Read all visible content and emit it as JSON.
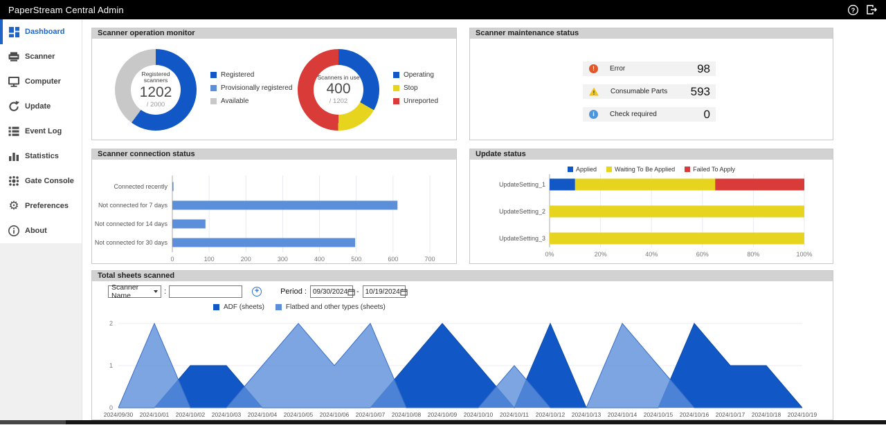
{
  "app": {
    "title": "PaperStream Central Admin"
  },
  "topbar": {
    "icons": [
      "help-icon",
      "logout-icon"
    ],
    "help_glyph": "?"
  },
  "sidebar": {
    "items": [
      {
        "label": "Dashboard",
        "icon": "dashboard-icon",
        "active": true
      },
      {
        "label": "Scanner",
        "icon": "scanner-icon",
        "active": false
      },
      {
        "label": "Computer",
        "icon": "computer-icon",
        "active": false
      },
      {
        "label": "Update",
        "icon": "update-icon",
        "active": false
      },
      {
        "label": "Event Log",
        "icon": "event-log-icon",
        "active": false
      },
      {
        "label": "Statistics",
        "icon": "statistics-icon",
        "active": false
      },
      {
        "label": "Gate Console",
        "icon": "gate-console-icon",
        "active": false
      },
      {
        "label": "Preferences",
        "icon": "preferences-icon",
        "active": false
      },
      {
        "label": "About",
        "icon": "about-icon",
        "active": false
      }
    ]
  },
  "panels": {
    "operation": {
      "title": "Scanner operation monitor",
      "donuts": [
        {
          "center_label": "Registered scanners",
          "value": "1202",
          "total": "/ 2000",
          "slices": [
            {
              "label": "Registered",
              "value": 1202,
              "color": "#1157c5"
            },
            {
              "label": "Provisionally registered",
              "value": 0,
              "color": "#5b8fd9"
            },
            {
              "label": "Available",
              "value": 798,
              "color": "#c8c8c8"
            }
          ]
        },
        {
          "center_label": "Scanners in use",
          "value": "400",
          "total": "/ 1202",
          "slices": [
            {
              "label": "Operating",
              "value": 400,
              "color": "#1157c5"
            },
            {
              "label": "Stop",
              "value": 202,
              "color": "#e7d41e"
            },
            {
              "label": "Unreported",
              "value": 600,
              "color": "#d93b38"
            }
          ]
        }
      ]
    },
    "maintenance": {
      "title": "Scanner maintenance status",
      "rows": [
        {
          "icon": "error-icon",
          "glyph": "!",
          "label": "Error",
          "value": "98"
        },
        {
          "icon": "warning-icon",
          "glyph": "!",
          "label": "Consumable Parts",
          "value": "593"
        },
        {
          "icon": "info-icon",
          "glyph": "i",
          "label": "Check required",
          "value": "0"
        }
      ]
    },
    "connection": {
      "title": "Scanner connection status"
    },
    "update": {
      "title": "Update status"
    },
    "sheets": {
      "title": "Total sheets scanned",
      "filter_select": "Scanner Name",
      "colon": ":",
      "filter_value": "",
      "plus_icon": "+",
      "period_label": "Period :",
      "period_from": "09/30/2024",
      "separator": "-",
      "period_to": "10/19/2024"
    }
  },
  "chart_data": [
    {
      "type": "bar",
      "orientation": "horizontal",
      "categories": [
        "Connected recently",
        "Not connected for 7 days",
        "Not connected for 14 days",
        "Not connected for 30 days"
      ],
      "values": [
        3,
        612,
        90,
        497
      ],
      "xlim": [
        0,
        700
      ],
      "xticks": [
        0,
        100,
        200,
        300,
        400,
        500,
        600,
        700
      ],
      "bar_color": "#5b8fd9",
      "grid": true,
      "title": "Scanner connection status"
    },
    {
      "type": "bar",
      "orientation": "horizontal-stacked",
      "categories": [
        "UpdateSetting_1",
        "UpdateSetting_2",
        "UpdateSetting_3"
      ],
      "series": [
        {
          "name": "Applied",
          "color": "#1157c5",
          "values": [
            10,
            0,
            0
          ]
        },
        {
          "name": "Waiting To Be Applied",
          "color": "#e7d41e",
          "values": [
            55,
            100,
            100
          ]
        },
        {
          "name": "Failed To Apply",
          "color": "#d93b38",
          "values": [
            35,
            0,
            0
          ]
        }
      ],
      "xlim": [
        0,
        100
      ],
      "xticks": [
        "0%",
        "20%",
        "40%",
        "60%",
        "80%",
        "100%"
      ],
      "legend_position": "top",
      "grid": true,
      "title": "Update status"
    },
    {
      "type": "area",
      "x": [
        "2024/09/30",
        "2024/10/01",
        "2024/10/02",
        "2024/10/03",
        "2024/10/04",
        "2024/10/05",
        "2024/10/06",
        "2024/10/07",
        "2024/10/08",
        "2024/10/09",
        "2024/10/10",
        "2024/10/11",
        "2024/10/12",
        "2024/10/13",
        "2024/10/14",
        "2024/10/15",
        "2024/10/16",
        "2024/10/17",
        "2024/10/18",
        "2024/10/19"
      ],
      "series": [
        {
          "name": "ADF (sheets)",
          "color": "#1157c5",
          "values": [
            0,
            0,
            1,
            1,
            0,
            0,
            0,
            0,
            1,
            2,
            1,
            0,
            2,
            0,
            0,
            0,
            2,
            1,
            1,
            0
          ]
        },
        {
          "name": "Flatbed and other types (sheets)",
          "color": "#5b8fd9",
          "values": [
            0,
            2,
            0,
            0,
            1,
            2,
            1,
            2,
            0,
            0,
            0,
            1,
            0,
            0,
            2,
            1,
            0,
            0,
            0,
            0
          ]
        }
      ],
      "ylim": [
        0,
        2
      ],
      "yticks": [
        0,
        1,
        2
      ],
      "grid": true,
      "title": "Total sheets scanned"
    }
  ],
  "footer": {}
}
